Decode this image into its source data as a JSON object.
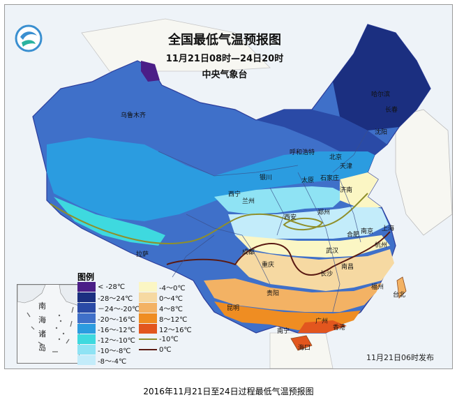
{
  "title": {
    "line1": "全国最低气温预报图",
    "line2": "11月21日08时—24日20时",
    "line3": "中央气象台"
  },
  "release": "11月21日06时发布",
  "caption": "2016年11月21日至24日过程最低气温预报图",
  "legend": {
    "title": "图例",
    "fills": [
      {
        "label": "< -28℃",
        "color": "#4b1e87"
      },
      {
        "label": "-28～24℃",
        "color": "#1b2f80"
      },
      {
        "label": "－24～-20℃",
        "color": "#2a4aa6"
      },
      {
        "label": "-20～-16℃",
        "color": "#3f70c9"
      },
      {
        "label": "-16～-12℃",
        "color": "#2b9ce0"
      },
      {
        "label": "-12～-10℃",
        "color": "#3ed9df"
      },
      {
        "label": "-10～-8℃",
        "color": "#8fe3f4"
      },
      {
        "label": "-8～-4℃",
        "color": "#c3ecfa"
      },
      {
        "label": "-4～0℃",
        "color": "#fbf6c4"
      },
      {
        "label": "0～4℃",
        "color": "#f6d9a2"
      },
      {
        "label": "4～8℃",
        "color": "#f3b264"
      },
      {
        "label": "8～12℃",
        "color": "#ef8d22"
      },
      {
        "label": "12～16℃",
        "color": "#e2561e"
      }
    ],
    "lines": [
      {
        "label": "-10℃",
        "color": "#8f8f2a"
      },
      {
        "label": "0℃",
        "color": "#5a1a12"
      }
    ]
  },
  "cities": [
    {
      "name": "乌鲁木齐"
    },
    {
      "name": "哈尔滨"
    },
    {
      "name": "长春"
    },
    {
      "name": "沈阳"
    },
    {
      "name": "呼和浩特"
    },
    {
      "name": "北京"
    },
    {
      "name": "天津"
    },
    {
      "name": "银川"
    },
    {
      "name": "太原"
    },
    {
      "name": "石家庄"
    },
    {
      "name": "济南"
    },
    {
      "name": "西宁"
    },
    {
      "name": "兰州"
    },
    {
      "name": "西安"
    },
    {
      "name": "郑州"
    },
    {
      "name": "合肥"
    },
    {
      "name": "南京"
    },
    {
      "name": "上海"
    },
    {
      "name": "杭州"
    },
    {
      "name": "武汉"
    },
    {
      "name": "成都"
    },
    {
      "name": "重庆"
    },
    {
      "name": "长沙"
    },
    {
      "name": "南昌"
    },
    {
      "name": "拉萨"
    },
    {
      "name": "贵阳"
    },
    {
      "name": "昆明"
    },
    {
      "name": "福州"
    },
    {
      "name": "台北"
    },
    {
      "name": "南宁"
    },
    {
      "name": "广州"
    },
    {
      "name": "香港"
    },
    {
      "name": "海口"
    }
  ],
  "inset": {
    "label1": "南",
    "label2": "海",
    "label3": "诸",
    "label4": "岛"
  }
}
